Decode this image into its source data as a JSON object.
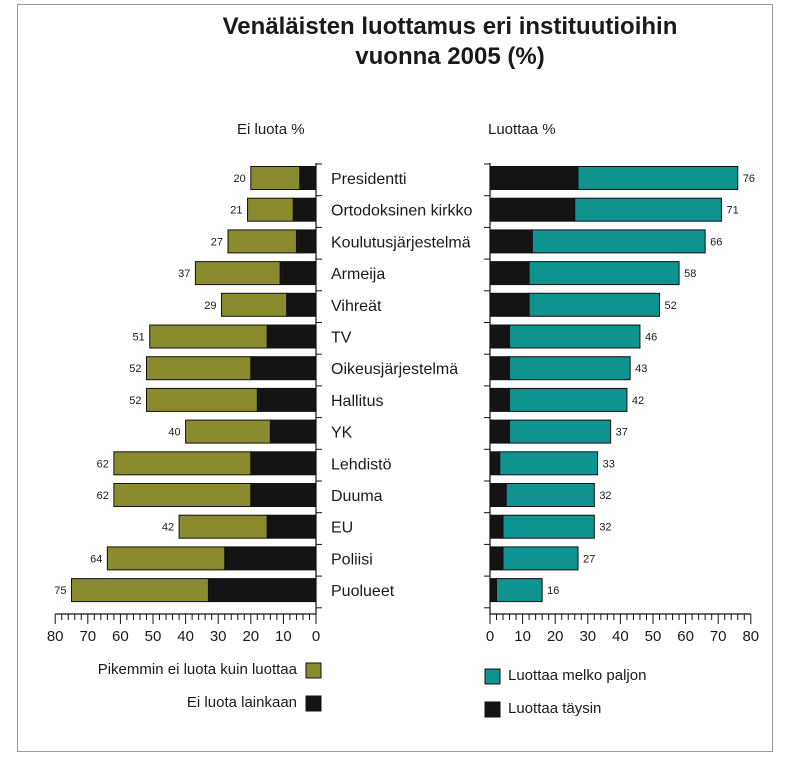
{
  "chart_data": {
    "type": "bar",
    "title_lines": [
      "Venäläisten luottamus eri instituutioihin",
      "vuonna 2005 (%)"
    ],
    "left_header": "Ei luota  %",
    "right_header": "Luottaa %",
    "categories": [
      "Presidentti",
      "Ortodoksinen kirkko",
      "Koulutusjärjestelmä",
      "Armeija",
      "Vihreät",
      "TV",
      "Oikeusjärjestelmä",
      "Hallitus",
      "YK",
      "Lehdistö",
      "Duuma",
      "EU",
      "Poliisi",
      "Puolueet"
    ],
    "left_series": [
      {
        "name": "Pikemmin ei luota kuin luottaa",
        "color": "#8a8a2e",
        "values": [
          15,
          14,
          21,
          26,
          20,
          36,
          32,
          34,
          26,
          42,
          42,
          27,
          36,
          42
        ]
      },
      {
        "name": "Ei luota lainkaan",
        "color": "#141414",
        "values": [
          5,
          7,
          6,
          11,
          9,
          15,
          20,
          18,
          14,
          20,
          20,
          15,
          28,
          33
        ]
      }
    ],
    "left_totals": [
      20,
      21,
      27,
      37,
      29,
      51,
      52,
      52,
      40,
      62,
      62,
      42,
      64,
      75
    ],
    "right_series": [
      {
        "name": "Luottaa täysin",
        "color": "#141414",
        "values": [
          27,
          26,
          13,
          12,
          12,
          6,
          6,
          6,
          6,
          3,
          5,
          4,
          4,
          2
        ]
      },
      {
        "name": "Luottaa melko paljon",
        "color": "#0e9390",
        "values": [
          49,
          45,
          53,
          46,
          40,
          40,
          37,
          36,
          31,
          30,
          27,
          28,
          23,
          14
        ]
      }
    ],
    "right_totals": [
      76,
      71,
      66,
      58,
      52,
      46,
      43,
      42,
      37,
      33,
      32,
      32,
      27,
      16
    ],
    "left_axis_ticks": [
      "80",
      "70",
      "60",
      "50",
      "40",
      "30",
      "20",
      "10",
      "0"
    ],
    "right_axis_ticks": [
      "0",
      "10",
      "20",
      "30",
      "40",
      "50",
      "60",
      "70",
      "80"
    ],
    "xlim": [
      0,
      80
    ],
    "legend": [
      {
        "label": "Pikemmin ei luota kuin luottaa",
        "color": "#8a8a2e"
      },
      {
        "label": "Ei luota lainkaan",
        "color": "#141414"
      },
      {
        "label": "Luottaa melko paljon",
        "color": "#0e9390"
      },
      {
        "label": "Luottaa täysin",
        "color": "#141414"
      }
    ],
    "legend_placement": "bottom"
  }
}
